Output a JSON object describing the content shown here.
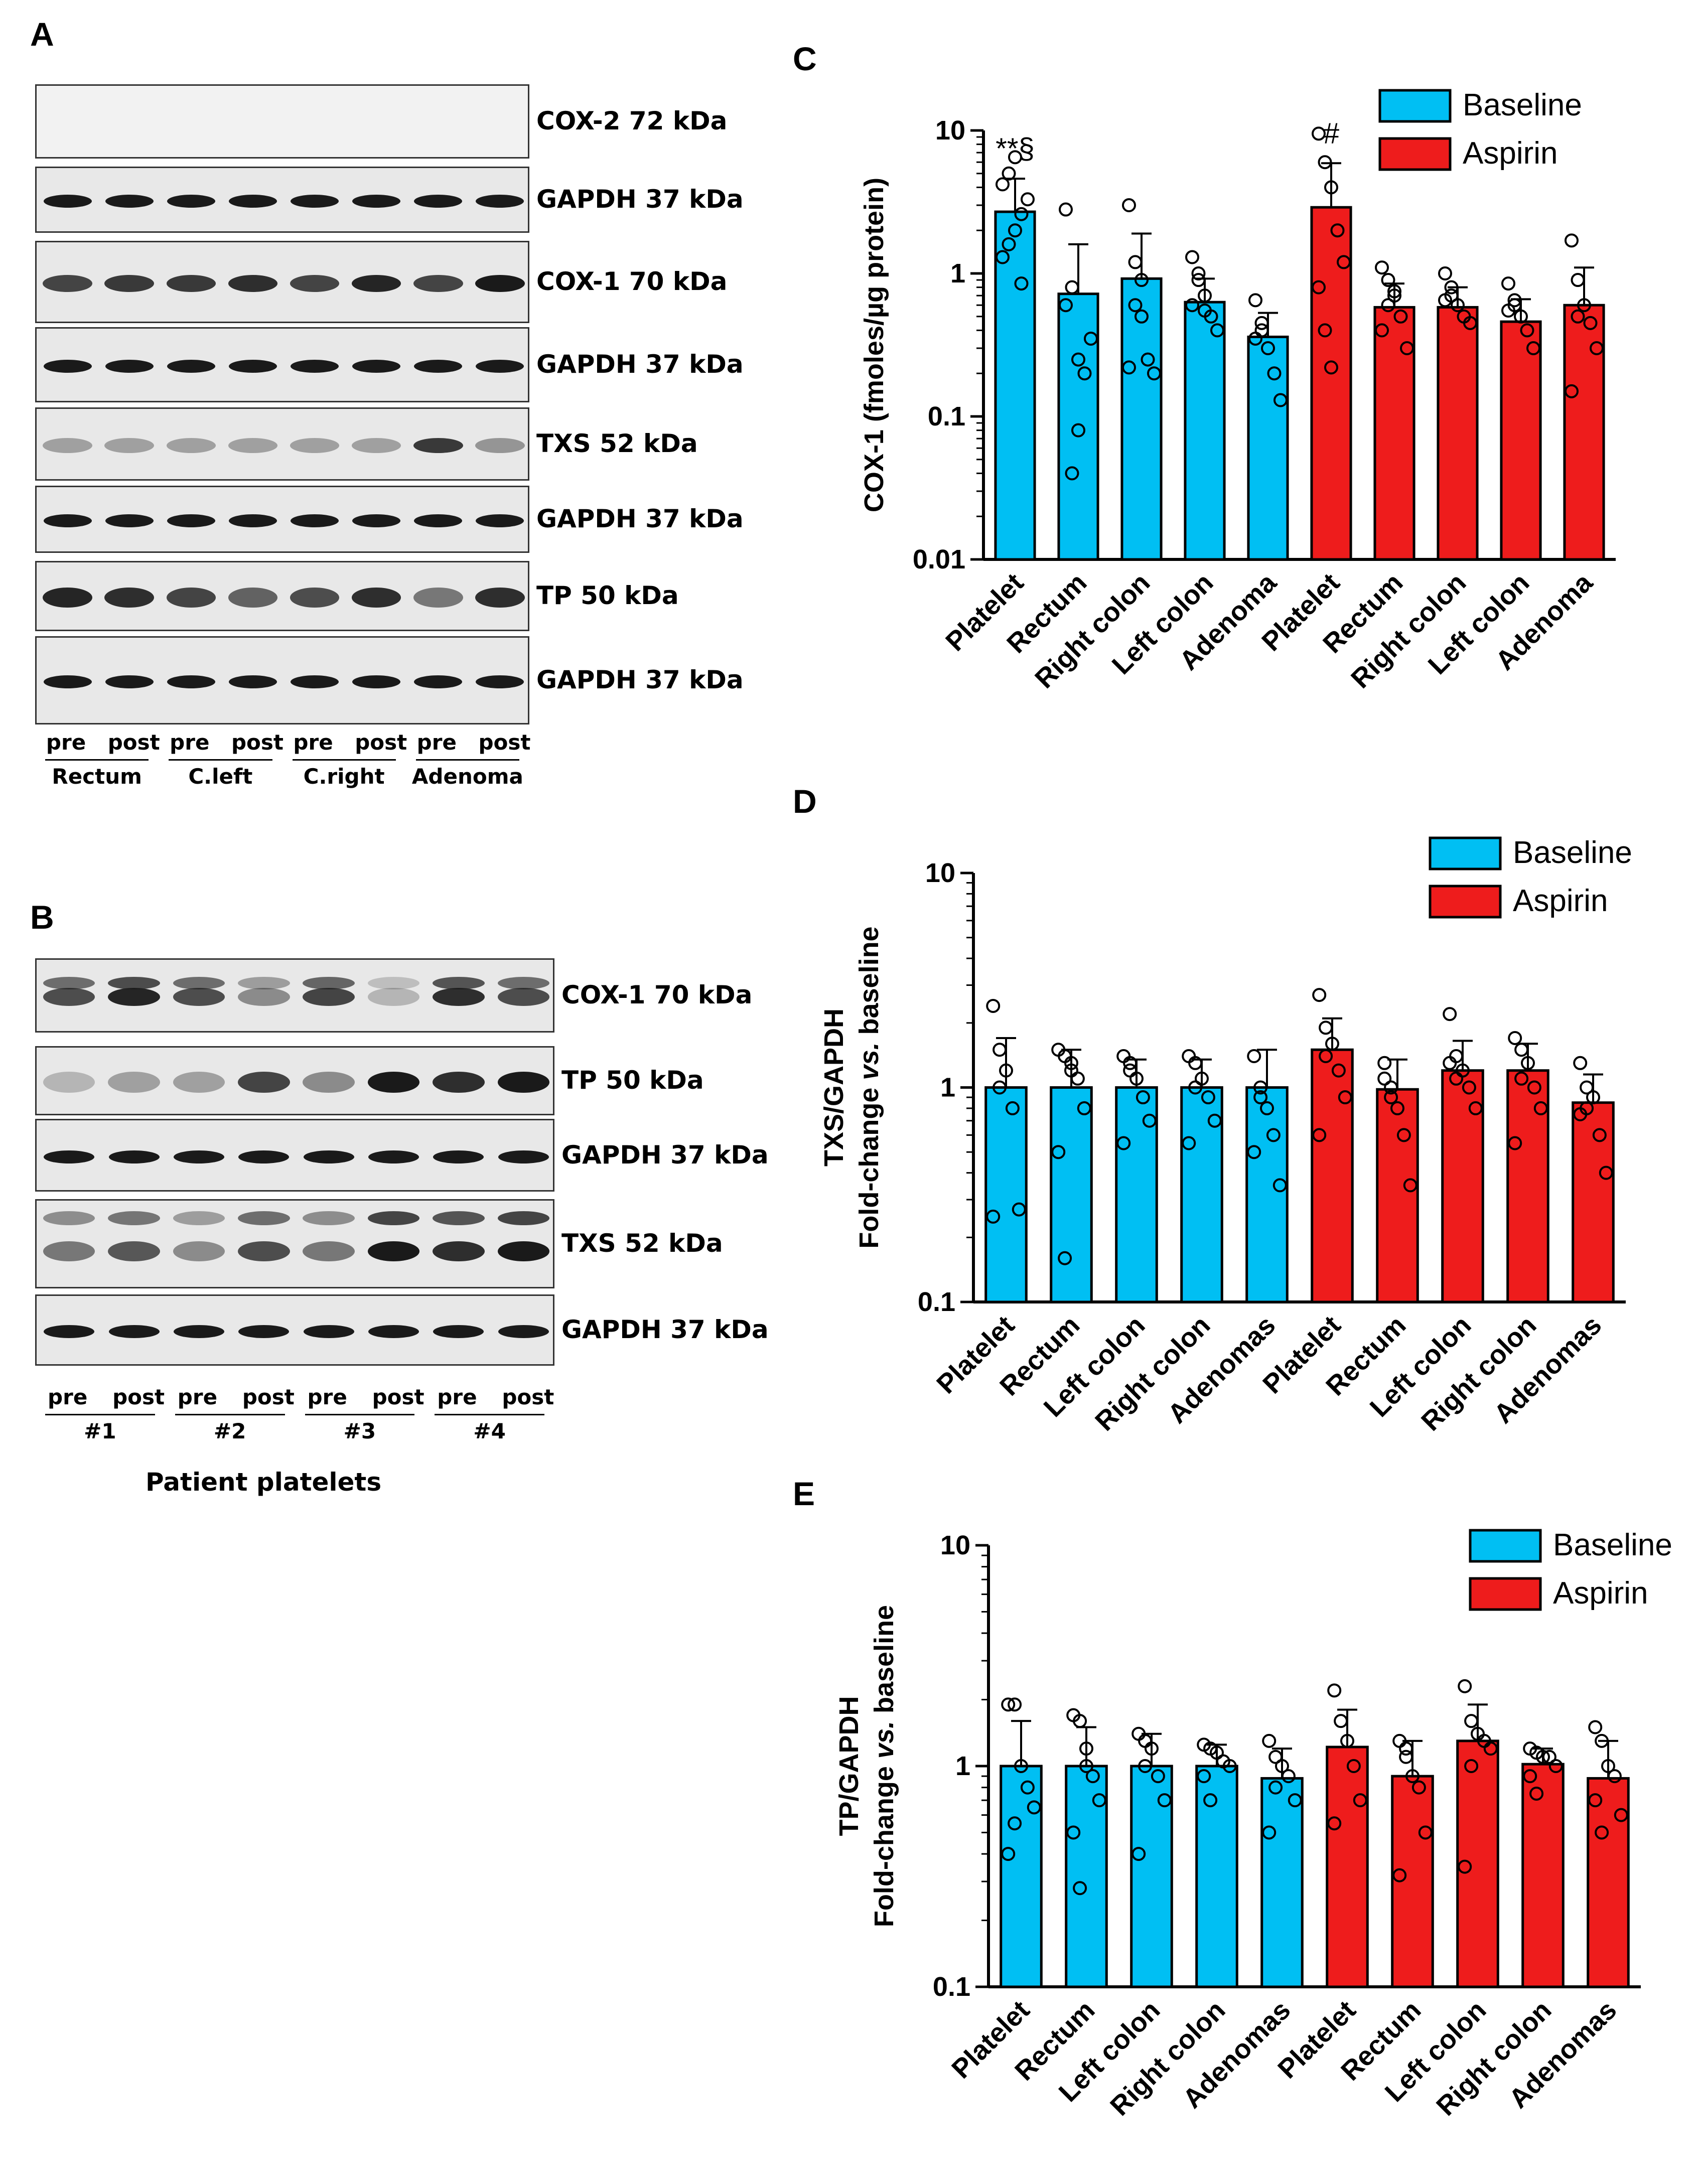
{
  "figure": {
    "panels": {
      "A": {
        "letter": "A",
        "blots": [
          {
            "label": "COX-2 72 kDa",
            "kind": "empty"
          },
          {
            "label": "GAPDH 37 kDa",
            "kind": "gapdh"
          },
          {
            "label": "COX-1 70 kDa",
            "kind": "cox1"
          },
          {
            "label": "GAPDH 37 kDa",
            "kind": "gapdh"
          },
          {
            "label": "TXS 52 kDa",
            "kind": "txs"
          },
          {
            "label": "GAPDH 37 kDa",
            "kind": "gapdh"
          },
          {
            "label": "TP 50 kDa",
            "kind": "tp"
          },
          {
            "label": "GAPDH 37 kDa",
            "kind": "gapdh"
          }
        ],
        "lanes": [
          "pre",
          "post",
          "pre",
          "post",
          "pre",
          "post",
          "pre",
          "post"
        ],
        "groups": [
          "Rectum",
          "C.left",
          "C.right",
          "Adenoma"
        ]
      },
      "B": {
        "letter": "B",
        "blots": [
          {
            "label": "COX-1 70 kDa",
            "kind": "cox1b"
          },
          {
            "label": "TP 50 kDa",
            "kind": "tpb"
          },
          {
            "label": "GAPDH 37 kDa",
            "kind": "gapdh"
          },
          {
            "label": "TXS 52 kDa",
            "kind": "txsb"
          },
          {
            "label": "GAPDH 37 kDa",
            "kind": "gapdh"
          }
        ],
        "lanes": [
          "pre",
          "post",
          "pre",
          "post",
          "pre",
          "post",
          "pre",
          "post"
        ],
        "groups": [
          "#1",
          "#2",
          "#3",
          "#4"
        ],
        "caption": "Patient platelets"
      }
    },
    "colors": {
      "baseline": "#00bff3",
      "aspirin": "#ee1c1c",
      "axis": "#000000"
    }
  },
  "chart_data": [
    {
      "panel": "C",
      "type": "bar",
      "yscale": "log",
      "ylim": [
        0.01,
        10
      ],
      "ylabel": "COX-1 (fmoles/µg protein)",
      "yticks": [
        "0.01",
        "0.1",
        "1",
        "10"
      ],
      "categories": [
        "Platelet",
        "Rectum",
        "Right colon",
        "Left colon",
        "Adenoma",
        "Platelet",
        "Rectum",
        "Right colon",
        "Left colon",
        "Adenoma"
      ],
      "groups": [
        "Baseline",
        "Baseline",
        "Baseline",
        "Baseline",
        "Baseline",
        "Aspirin",
        "Aspirin",
        "Aspirin",
        "Aspirin",
        "Aspirin"
      ],
      "values": [
        2.7,
        0.72,
        0.92,
        0.63,
        0.36,
        2.9,
        0.58,
        0.58,
        0.46,
        0.6
      ],
      "error_upper": [
        4.6,
        1.6,
        1.9,
        0.92,
        0.53,
        5.9,
        0.85,
        0.8,
        0.66,
        1.1
      ],
      "points": [
        [
          1.3,
          1.6,
          2.0,
          2.6,
          3.3,
          4.2,
          5.0,
          6.5,
          0.85
        ],
        [
          2.8,
          0.04,
          0.08,
          0.2,
          0.35,
          0.6,
          0.8,
          0.25
        ],
        [
          3.0,
          1.2,
          0.9,
          0.25,
          0.2,
          0.22,
          0.6,
          0.5
        ],
        [
          1.3,
          1.0,
          0.7,
          0.5,
          0.4,
          0.6,
          0.9,
          0.55
        ],
        [
          0.65,
          0.4,
          0.3,
          0.2,
          0.13,
          0.35,
          0.45
        ],
        [
          9.5,
          6.0,
          4.0,
          2.0,
          1.2,
          0.8,
          0.4,
          0.22
        ],
        [
          1.1,
          0.9,
          0.7,
          0.5,
          0.3,
          0.4,
          0.6,
          0.75
        ],
        [
          1.0,
          0.8,
          0.6,
          0.5,
          0.45,
          0.65,
          0.7
        ],
        [
          0.85,
          0.6,
          0.5,
          0.4,
          0.3,
          0.55,
          0.65
        ],
        [
          1.7,
          0.9,
          0.6,
          0.45,
          0.3,
          0.15,
          0.5
        ]
      ],
      "annotations": [
        {
          "category_index": 0,
          "text": "**§"
        },
        {
          "category_index": 5,
          "text": "#"
        }
      ],
      "legend": [
        "Baseline",
        "Aspirin"
      ],
      "legend_position": "top-right"
    },
    {
      "panel": "D",
      "type": "bar",
      "yscale": "log",
      "ylim": [
        0.1,
        10
      ],
      "ylabel_parts": [
        "Fold-change ",
        "vs.",
        " baseline"
      ],
      "ylabel_top": "TXS/GAPDH",
      "yticks": [
        "0.1",
        "1",
        "10"
      ],
      "categories": [
        "Platelet",
        "Rectum",
        "Left colon",
        "Right colon",
        "Adenomas",
        "Platelet",
        "Rectum",
        "Left colon",
        "Right colon",
        "Adenomas"
      ],
      "groups": [
        "Baseline",
        "Baseline",
        "Baseline",
        "Baseline",
        "Baseline",
        "Aspirin",
        "Aspirin",
        "Aspirin",
        "Aspirin",
        "Aspirin"
      ],
      "values": [
        1.0,
        1.0,
        1.0,
        1.0,
        1.0,
        1.5,
        0.98,
        1.2,
        1.2,
        0.85
      ],
      "error_upper": [
        1.7,
        1.5,
        1.35,
        1.35,
        1.5,
        2.1,
        1.35,
        1.65,
        1.6,
        1.15
      ],
      "points": [
        [
          2.4,
          1.5,
          1.2,
          0.8,
          0.27,
          0.25,
          1.0
        ],
        [
          1.5,
          1.4,
          1.3,
          1.1,
          0.8,
          0.5,
          0.16,
          1.2
        ],
        [
          1.4,
          1.3,
          1.1,
          0.9,
          0.7,
          0.55,
          1.2
        ],
        [
          1.4,
          1.3,
          1.1,
          0.9,
          0.7,
          0.55,
          1.0
        ],
        [
          1.4,
          1.0,
          0.8,
          0.6,
          0.35,
          0.5,
          0.9
        ],
        [
          2.7,
          1.9,
          1.6,
          1.2,
          0.9,
          0.6,
          1.4
        ],
        [
          1.3,
          1.0,
          0.8,
          0.6,
          0.35,
          1.1,
          0.9
        ],
        [
          2.2,
          1.4,
          1.2,
          1.0,
          0.8,
          1.3,
          1.1
        ],
        [
          1.7,
          1.5,
          1.3,
          1.0,
          0.8,
          0.55,
          1.1
        ],
        [
          1.3,
          1.0,
          0.9,
          0.6,
          0.4,
          0.75,
          0.8
        ]
      ],
      "legend": [
        "Baseline",
        "Aspirin"
      ],
      "legend_position": "top-right"
    },
    {
      "panel": "E",
      "type": "bar",
      "yscale": "log",
      "ylim": [
        0.1,
        10
      ],
      "ylabel_parts": [
        "Fold-change ",
        "vs.",
        " baseline"
      ],
      "ylabel_top": "TP/GAPDH",
      "yticks": [
        "0.1",
        "1",
        "10"
      ],
      "categories": [
        "Platelet",
        "Rectum",
        "Left colon",
        "Right colon",
        "Adenomas",
        "Platelet",
        "Rectum",
        "Left colon",
        "Right colon",
        "Adenomas"
      ],
      "groups": [
        "Baseline",
        "Baseline",
        "Baseline",
        "Baseline",
        "Baseline",
        "Aspirin",
        "Aspirin",
        "Aspirin",
        "Aspirin",
        "Aspirin"
      ],
      "values": [
        1.0,
        1.0,
        1.0,
        1.0,
        0.88,
        1.22,
        0.9,
        1.3,
        1.02,
        0.88
      ],
      "error_upper": [
        1.6,
        1.5,
        1.4,
        1.25,
        1.2,
        1.8,
        1.3,
        1.9,
        1.2,
        1.3
      ],
      "points": [
        [
          1.9,
          1.9,
          1.0,
          0.8,
          0.65,
          0.4,
          0.55
        ],
        [
          1.7,
          1.6,
          1.0,
          0.9,
          0.7,
          0.5,
          0.28,
          1.2
        ],
        [
          1.4,
          1.3,
          1.2,
          0.9,
          0.7,
          0.4,
          1.0
        ],
        [
          1.25,
          1.2,
          1.15,
          1.05,
          1.0,
          0.9,
          0.7
        ],
        [
          1.3,
          1.1,
          1.0,
          0.9,
          0.7,
          0.5,
          0.8
        ],
        [
          2.2,
          1.6,
          1.3,
          1.0,
          0.7,
          0.55
        ],
        [
          1.3,
          1.1,
          0.9,
          0.8,
          0.5,
          0.32,
          1.2
        ],
        [
          2.3,
          1.6,
          1.4,
          1.3,
          1.2,
          0.35,
          1.0
        ],
        [
          1.2,
          1.15,
          1.1,
          1.1,
          1.0,
          0.9,
          0.75
        ],
        [
          1.5,
          1.3,
          1.0,
          0.9,
          0.6,
          0.7,
          0.5
        ]
      ],
      "legend": [
        "Baseline",
        "Aspirin"
      ],
      "legend_position": "top-right"
    }
  ]
}
